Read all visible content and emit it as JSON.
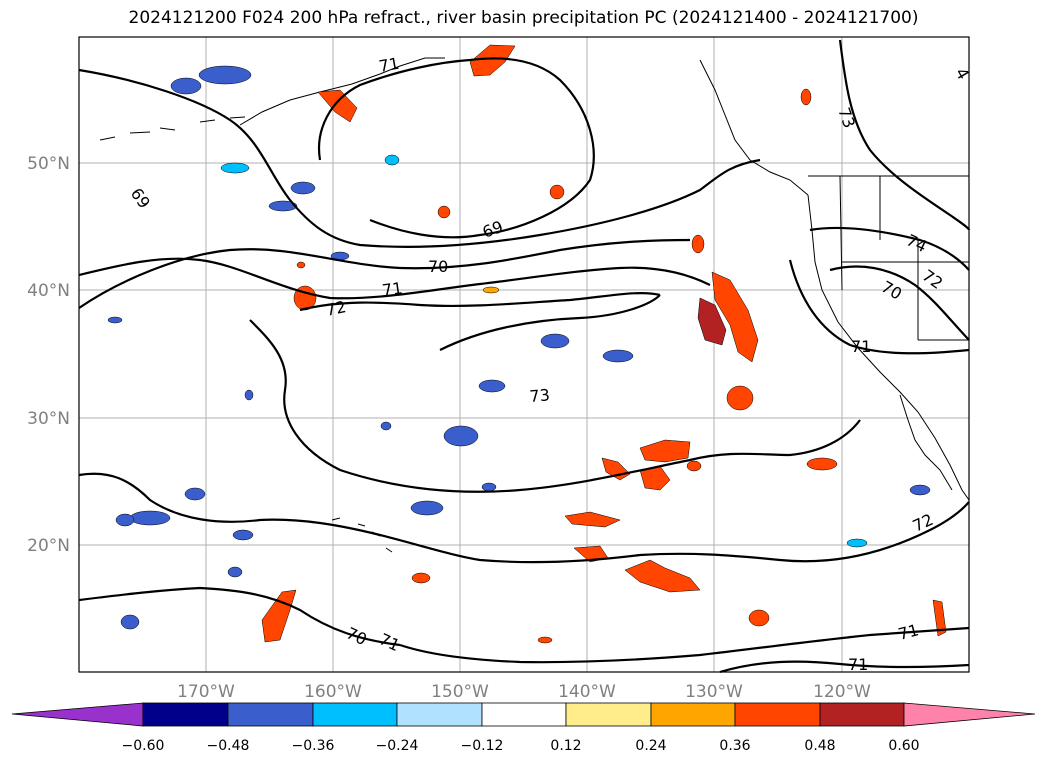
{
  "title": "2024121200 F024 200 hPa refract., river basin precipitation PC (2024121400 - 2024121700)",
  "lon_labels": [
    "170°W",
    "160°W",
    "150°W",
    "140°W",
    "130°W",
    "120°W"
  ],
  "lat_labels": [
    "50°N",
    "40°N",
    "30°N",
    "20°N"
  ],
  "contour_labels": [
    "69",
    "69",
    "70",
    "71",
    "72",
    "73",
    "73",
    "74",
    "70",
    "72",
    "71",
    "71",
    "70",
    "71",
    "72",
    "71",
    "71",
    "4"
  ],
  "colorbar": {
    "ticks": [
      "−0.60",
      "−0.48",
      "−0.36",
      "−0.24",
      "−0.12",
      "0.12",
      "0.24",
      "0.36",
      "0.48",
      "0.60"
    ],
    "colors": [
      "#9932cc",
      "#00008b",
      "#3a5fcd",
      "#00bfff",
      "#b0e2ff",
      "#ffffff",
      "#ffec8b",
      "#ffa500",
      "#ff4500",
      "#b22222",
      "#ff82ab"
    ]
  },
  "colors": {
    "contour": "#000000",
    "grid": "#b0b0b0",
    "coast": "#000000",
    "label": "#808080"
  }
}
